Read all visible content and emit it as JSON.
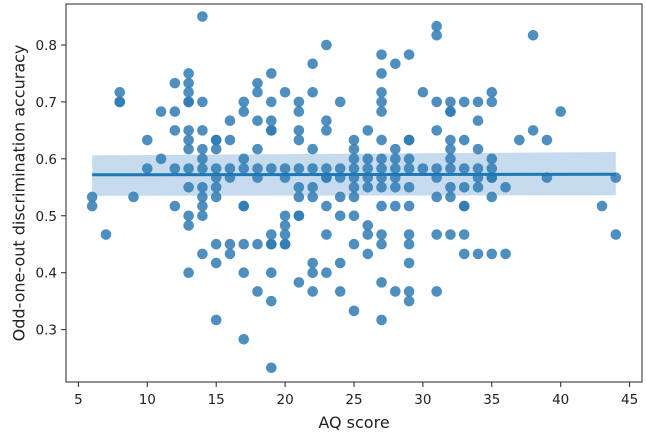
{
  "chart_data": {
    "type": "scatter",
    "title": "",
    "xlabel": "AQ score",
    "ylabel": "Odd-one-out discrimination accuracy",
    "xlim": [
      4.1,
      45.9
    ],
    "ylim": [
      0.208,
      0.872
    ],
    "xticks": [
      5,
      10,
      15,
      20,
      25,
      30,
      35,
      40,
      45
    ],
    "yticks": [
      0.3,
      0.4,
      0.5,
      0.6,
      0.7,
      0.8
    ],
    "grid": false,
    "point_color": "#2f7bb5",
    "line_color": "#1f77b4",
    "band_color": "#bcd5ea",
    "regression": {
      "x": [
        6,
        44
      ],
      "y": [
        0.572,
        0.573
      ],
      "ci_lower": [
        0.535,
        0.536
      ],
      "ci_upper": [
        0.606,
        0.612
      ]
    },
    "points": [
      [
        6,
        0.533
      ],
      [
        6,
        0.517
      ],
      [
        7,
        0.467
      ],
      [
        8,
        0.717
      ],
      [
        8,
        0.7
      ],
      [
        8,
        0.7
      ],
      [
        9,
        0.533
      ],
      [
        10,
        0.633
      ],
      [
        10,
        0.583
      ],
      [
        11,
        0.683
      ],
      [
        11,
        0.6
      ],
      [
        12,
        0.733
      ],
      [
        12,
        0.683
      ],
      [
        12,
        0.65
      ],
      [
        12,
        0.583
      ],
      [
        12,
        0.517
      ],
      [
        13,
        0.75
      ],
      [
        13,
        0.733
      ],
      [
        13,
        0.717
      ],
      [
        13,
        0.7
      ],
      [
        13,
        0.7
      ],
      [
        13,
        0.65
      ],
      [
        13,
        0.633
      ],
      [
        13,
        0.617
      ],
      [
        13,
        0.583
      ],
      [
        13,
        0.55
      ],
      [
        13,
        0.5
      ],
      [
        13,
        0.483
      ],
      [
        13,
        0.4
      ],
      [
        14,
        0.85
      ],
      [
        14,
        0.7
      ],
      [
        14,
        0.65
      ],
      [
        14,
        0.617
      ],
      [
        14,
        0.6
      ],
      [
        14,
        0.583
      ],
      [
        14,
        0.55
      ],
      [
        14,
        0.533
      ],
      [
        14,
        0.517
      ],
      [
        14,
        0.5
      ],
      [
        14,
        0.433
      ],
      [
        15,
        0.633
      ],
      [
        15,
        0.633
      ],
      [
        15,
        0.617
      ],
      [
        15,
        0.583
      ],
      [
        15,
        0.567
      ],
      [
        15,
        0.55
      ],
      [
        15,
        0.533
      ],
      [
        15,
        0.45
      ],
      [
        15,
        0.417
      ],
      [
        15,
        0.317
      ],
      [
        16,
        0.667
      ],
      [
        16,
        0.633
      ],
      [
        16,
        0.583
      ],
      [
        16,
        0.567
      ],
      [
        16,
        0.45
      ],
      [
        16,
        0.433
      ],
      [
        17,
        0.7
      ],
      [
        17,
        0.683
      ],
      [
        17,
        0.6
      ],
      [
        17,
        0.583
      ],
      [
        17,
        0.517
      ],
      [
        17,
        0.517
      ],
      [
        17,
        0.45
      ],
      [
        17,
        0.4
      ],
      [
        17,
        0.283
      ],
      [
        18,
        0.733
      ],
      [
        18,
        0.717
      ],
      [
        18,
        0.667
      ],
      [
        18,
        0.617
      ],
      [
        18,
        0.583
      ],
      [
        18,
        0.567
      ],
      [
        18,
        0.45
      ],
      [
        18,
        0.367
      ],
      [
        19,
        0.75
      ],
      [
        19,
        0.7
      ],
      [
        19,
        0.667
      ],
      [
        19,
        0.65
      ],
      [
        19,
        0.65
      ],
      [
        19,
        0.583
      ],
      [
        19,
        0.467
      ],
      [
        19,
        0.45
      ],
      [
        19,
        0.45
      ],
      [
        19,
        0.4
      ],
      [
        19,
        0.35
      ],
      [
        19,
        0.233
      ],
      [
        20,
        0.717
      ],
      [
        20,
        0.583
      ],
      [
        20,
        0.567
      ],
      [
        20,
        0.5
      ],
      [
        20,
        0.483
      ],
      [
        20,
        0.467
      ],
      [
        20,
        0.45
      ],
      [
        20,
        0.45
      ],
      [
        21,
        0.7
      ],
      [
        21,
        0.683
      ],
      [
        21,
        0.65
      ],
      [
        21,
        0.633
      ],
      [
        21,
        0.583
      ],
      [
        21,
        0.55
      ],
      [
        21,
        0.533
      ],
      [
        21,
        0.5
      ],
      [
        21,
        0.5
      ],
      [
        21,
        0.383
      ],
      [
        22,
        0.767
      ],
      [
        22,
        0.717
      ],
      [
        22,
        0.617
      ],
      [
        22,
        0.583
      ],
      [
        22,
        0.55
      ],
      [
        22,
        0.533
      ],
      [
        22,
        0.417
      ],
      [
        22,
        0.4
      ],
      [
        22,
        0.367
      ],
      [
        23,
        0.8
      ],
      [
        23,
        0.667
      ],
      [
        23,
        0.65
      ],
      [
        23,
        0.583
      ],
      [
        23,
        0.567
      ],
      [
        23,
        0.567
      ],
      [
        23,
        0.517
      ],
      [
        23,
        0.467
      ],
      [
        23,
        0.4
      ],
      [
        24,
        0.7
      ],
      [
        24,
        0.583
      ],
      [
        24,
        0.567
      ],
      [
        24,
        0.533
      ],
      [
        24,
        0.5
      ],
      [
        24,
        0.417
      ],
      [
        24,
        0.367
      ],
      [
        25,
        0.633
      ],
      [
        25,
        0.617
      ],
      [
        25,
        0.6
      ],
      [
        25,
        0.583
      ],
      [
        25,
        0.567
      ],
      [
        25,
        0.55
      ],
      [
        25,
        0.533
      ],
      [
        25,
        0.5
      ],
      [
        25,
        0.45
      ],
      [
        25,
        0.333
      ],
      [
        26,
        0.65
      ],
      [
        26,
        0.6
      ],
      [
        26,
        0.583
      ],
      [
        26,
        0.567
      ],
      [
        26,
        0.55
      ],
      [
        26,
        0.483
      ],
      [
        26,
        0.467
      ],
      [
        26,
        0.433
      ],
      [
        27,
        0.783
      ],
      [
        27,
        0.75
      ],
      [
        27,
        0.717
      ],
      [
        27,
        0.7
      ],
      [
        27,
        0.683
      ],
      [
        27,
        0.633
      ],
      [
        27,
        0.6
      ],
      [
        27,
        0.583
      ],
      [
        27,
        0.567
      ],
      [
        27,
        0.55
      ],
      [
        27,
        0.517
      ],
      [
        27,
        0.467
      ],
      [
        27,
        0.45
      ],
      [
        27,
        0.383
      ],
      [
        27,
        0.317
      ],
      [
        28,
        0.767
      ],
      [
        28,
        0.617
      ],
      [
        28,
        0.6
      ],
      [
        28,
        0.583
      ],
      [
        28,
        0.567
      ],
      [
        28,
        0.55
      ],
      [
        28,
        0.517
      ],
      [
        28,
        0.367
      ],
      [
        29,
        0.783
      ],
      [
        29,
        0.633
      ],
      [
        29,
        0.633
      ],
      [
        29,
        0.6
      ],
      [
        29,
        0.583
      ],
      [
        29,
        0.55
      ],
      [
        29,
        0.517
      ],
      [
        29,
        0.467
      ],
      [
        29,
        0.45
      ],
      [
        29,
        0.417
      ],
      [
        29,
        0.367
      ],
      [
        29,
        0.35
      ],
      [
        30,
        0.717
      ],
      [
        30,
        0.583
      ],
      [
        31,
        0.833
      ],
      [
        31,
        0.817
      ],
      [
        31,
        0.7
      ],
      [
        31,
        0.65
      ],
      [
        31,
        0.583
      ],
      [
        31,
        0.567
      ],
      [
        31,
        0.533
      ],
      [
        31,
        0.467
      ],
      [
        31,
        0.367
      ],
      [
        32,
        0.7
      ],
      [
        32,
        0.683
      ],
      [
        32,
        0.683
      ],
      [
        32,
        0.633
      ],
      [
        32,
        0.617
      ],
      [
        32,
        0.6
      ],
      [
        32,
        0.583
      ],
      [
        32,
        0.55
      ],
      [
        32,
        0.533
      ],
      [
        32,
        0.467
      ],
      [
        33,
        0.7
      ],
      [
        33,
        0.633
      ],
      [
        33,
        0.583
      ],
      [
        33,
        0.55
      ],
      [
        33,
        0.517
      ],
      [
        33,
        0.517
      ],
      [
        33,
        0.467
      ],
      [
        33,
        0.433
      ],
      [
        34,
        0.7
      ],
      [
        34,
        0.667
      ],
      [
        34,
        0.617
      ],
      [
        34,
        0.583
      ],
      [
        34,
        0.567
      ],
      [
        34,
        0.55
      ],
      [
        34,
        0.433
      ],
      [
        35,
        0.717
      ],
      [
        35,
        0.7
      ],
      [
        35,
        0.6
      ],
      [
        35,
        0.583
      ],
      [
        35,
        0.567
      ],
      [
        35,
        0.567
      ],
      [
        35,
        0.533
      ],
      [
        35,
        0.433
      ],
      [
        36,
        0.55
      ],
      [
        36,
        0.433
      ],
      [
        37,
        0.633
      ],
      [
        38,
        0.817
      ],
      [
        38,
        0.65
      ],
      [
        39,
        0.633
      ],
      [
        39,
        0.567
      ],
      [
        40,
        0.683
      ],
      [
        43,
        0.517
      ],
      [
        44,
        0.567
      ],
      [
        44,
        0.467
      ]
    ]
  }
}
